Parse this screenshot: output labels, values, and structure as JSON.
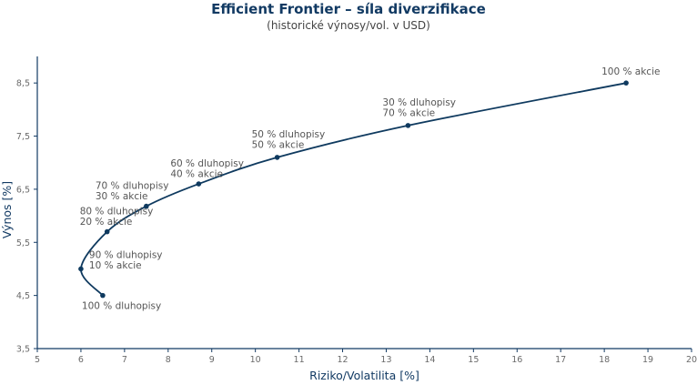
{
  "chart_data": {
    "type": "line",
    "title": "Efficient Frontier – síla diverzifikace",
    "subtitle": "(historické výnosy/vol. v USD)",
    "xlabel": "Riziko/Volatilita [%]",
    "ylabel": "Výnos [%]",
    "xlim": [
      5,
      20
    ],
    "ylim": [
      3.5,
      9.0
    ],
    "x_ticks": [
      "5",
      "6",
      "7",
      "8",
      "9",
      "10",
      "11",
      "12",
      "13",
      "14",
      "15",
      "16",
      "17",
      "18",
      "19",
      "20"
    ],
    "y_ticks": [
      "3,5",
      "4,5",
      "5,5",
      "6,5",
      "7,5",
      "8,5"
    ],
    "grid": false,
    "series": [
      {
        "points": [
          {
            "x": 6.5,
            "y": 4.5,
            "label": [
              "100 % dluhopisy"
            ]
          },
          {
            "x": 6.0,
            "y": 5.0,
            "label": [
              "90 % dluhopisy",
              "10 % akcie"
            ]
          },
          {
            "x": 6.6,
            "y": 5.7,
            "label": [
              "80 % dluhopisy",
              "20 % akcie"
            ]
          },
          {
            "x": 7.5,
            "y": 6.18,
            "label": [
              "70 % dluhopisy",
              "30 % akcie"
            ]
          },
          {
            "x": 8.7,
            "y": 6.6,
            "label": [
              "60 % dluhopisy",
              "40 % akcie"
            ]
          },
          {
            "x": 10.5,
            "y": 7.1,
            "label": [
              "50 % dluhopisy",
              "50 % akcie"
            ]
          },
          {
            "x": 13.5,
            "y": 7.7,
            "label": [
              "30 % dluhopisy",
              "70 % akcie"
            ]
          },
          {
            "x": 18.5,
            "y": 8.5,
            "label": [
              "100 % akcie"
            ]
          }
        ]
      }
    ],
    "colors": {
      "line": "#0f3a5f",
      "marker": "#0f3a5f",
      "axis": "#123a63"
    }
  }
}
